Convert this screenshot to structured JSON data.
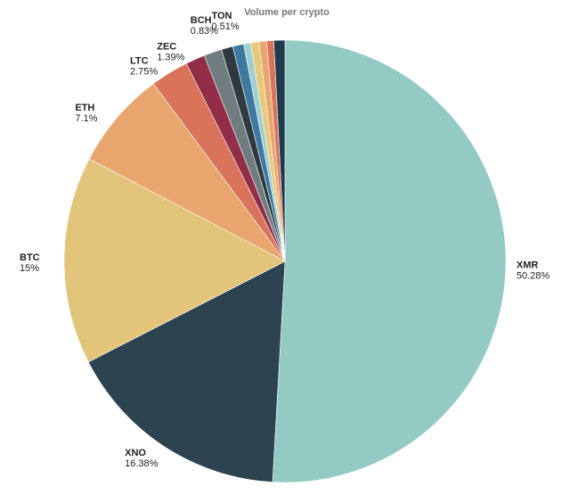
{
  "chart_data": {
    "type": "pie",
    "title": "Volume per crypto",
    "categories": [
      "XMR",
      "XNO",
      "BTC",
      "ETH",
      "LTC",
      "ZEC",
      null,
      "BCH",
      null,
      "TON",
      null,
      null,
      null,
      null
    ],
    "values": [
      50.28,
      16.38,
      15,
      7.1,
      2.75,
      1.39,
      1.3,
      0.83,
      0.8,
      0.51,
      0.6,
      0.55,
      0.5,
      0.8
    ],
    "value_labels": [
      "50.28%",
      "16.38%",
      "15%",
      "7.1%",
      "2.75%",
      "1.39%",
      null,
      "0.83%",
      null,
      "0.51%",
      null,
      null,
      null,
      null
    ],
    "colors": [
      "#94cac4",
      "#2e4350",
      "#e2c47a",
      "#e8a66e",
      "#d9735a",
      "#922e48",
      "#6f7d80",
      "#2f3a40",
      "#3e7aa0",
      "#9fd0d0",
      "#e8c87a",
      "#e8a66e",
      "#d9735a",
      "#1f3b4d"
    ]
  }
}
